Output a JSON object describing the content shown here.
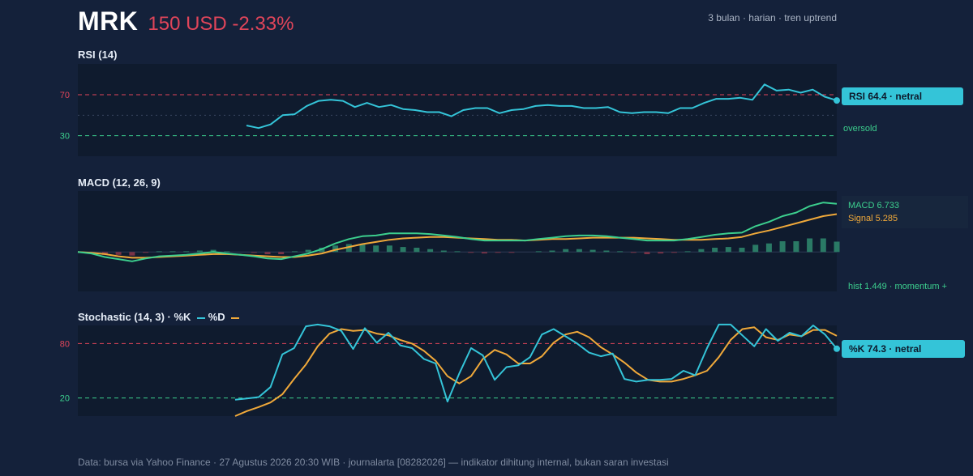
{
  "header": {
    "ticker": "MRK",
    "price_change": "150 USD -2.33%",
    "meta": "3 bulan · harian · tren uptrend"
  },
  "colors": {
    "background": "#14213a",
    "plot_bg": "#0f1b2e",
    "rsi_line": "#34c4d8",
    "macd_line": "#3ccf8e",
    "signal_line": "#f0a93a",
    "hist_pos": "#2a7a65",
    "hist_neg": "#7a3246",
    "overbought": "#e0455a",
    "oversold": "#3ccf8e"
  },
  "chart_data": [
    {
      "type": "line",
      "title": "RSI (14)",
      "ylim": [
        10,
        100
      ],
      "yticks": [
        "70",
        "30"
      ],
      "reference_lines": [
        70,
        50,
        30
      ],
      "series": [
        {
          "values": [
            40,
            37.5,
            41,
            50,
            51,
            59,
            64,
            65,
            64,
            58,
            62,
            58,
            60,
            56,
            55,
            53,
            53,
            49,
            55,
            57,
            57,
            52,
            55,
            56,
            59,
            60,
            59,
            59,
            57,
            57,
            58,
            53,
            52,
            53,
            53,
            52,
            57,
            57,
            62,
            66,
            66,
            67,
            65,
            80,
            74,
            75,
            72,
            75,
            68,
            64.4
          ]
        }
      ],
      "tag_label": "RSI 64.4 · netral",
      "zone_label": "oversold"
    },
    {
      "type": "line",
      "title": "MACD (12, 26, 9)",
      "ylim": [
        -5.5,
        8.5
      ],
      "series": [
        {
          "name": "MACD",
          "values": [
            0,
            -0.2,
            -0.7,
            -1.0,
            -1.3,
            -0.9,
            -0.6,
            -0.5,
            -0.4,
            -0.2,
            0,
            -0.2,
            -0.4,
            -0.6,
            -0.9,
            -1.0,
            -0.6,
            -0.2,
            0.4,
            1.2,
            1.8,
            2.2,
            2.3,
            2.6,
            2.6,
            2.6,
            2.5,
            2.3,
            2.1,
            1.8,
            1.6,
            1.6,
            1.6,
            1.6,
            1.8,
            2.0,
            2.2,
            2.3,
            2.3,
            2.2,
            2.0,
            1.8,
            1.6,
            1.6,
            1.6,
            1.8,
            2.1,
            2.4,
            2.6,
            2.7,
            3.6,
            4.2,
            5.0,
            5.5,
            6.4,
            6.9,
            6.733
          ]
        },
        {
          "name": "Signal",
          "values": [
            0,
            -0.1,
            -0.3,
            -0.6,
            -0.8,
            -0.8,
            -0.7,
            -0.6,
            -0.5,
            -0.4,
            -0.3,
            -0.3,
            -0.4,
            -0.5,
            -0.6,
            -0.7,
            -0.7,
            -0.5,
            -0.2,
            0.3,
            0.7,
            1.1,
            1.4,
            1.7,
            1.9,
            2.0,
            2.1,
            2.1,
            2.0,
            1.9,
            1.8,
            1.7,
            1.7,
            1.6,
            1.7,
            1.8,
            1.8,
            1.9,
            2.0,
            2.0,
            2.0,
            2.0,
            1.9,
            1.8,
            1.7,
            1.7,
            1.7,
            1.8,
            1.9,
            2.1,
            2.6,
            3.0,
            3.5,
            4.0,
            4.5,
            5.0,
            5.285
          ]
        },
        {
          "name": "hist",
          "values": [
            0,
            -0.1,
            -0.4,
            -0.4,
            -0.5,
            -0.1,
            0.1,
            0.1,
            0.1,
            0.2,
            0.3,
            0.1,
            0,
            -0.1,
            -0.3,
            -0.3,
            0.1,
            0.3,
            0.6,
            0.9,
            1.1,
            1.1,
            0.9,
            0.9,
            0.7,
            0.6,
            0.4,
            0.2,
            0.1,
            -0.1,
            -0.2,
            -0.1,
            -0.1,
            0,
            0.1,
            0.2,
            0.4,
            0.4,
            0.3,
            0.2,
            0.1,
            -0.1,
            -0.3,
            -0.2,
            -0.1,
            0.1,
            0.4,
            0.6,
            0.7,
            0.6,
            1.0,
            1.2,
            1.5,
            1.5,
            1.9,
            1.9,
            1.449
          ]
        }
      ],
      "labels": {
        "macd": "MACD 6.733",
        "signal": "Signal 5.285",
        "hist": "hist 1.449 · momentum +"
      }
    },
    {
      "type": "line",
      "title": "Stochastic (14, 3) · %K",
      "legend_d": "%D",
      "ylim": [
        0,
        100
      ],
      "yticks": [
        "80",
        "20"
      ],
      "reference_lines": [
        80,
        20
      ],
      "series": [
        {
          "name": "%K",
          "values": [
            18,
            19.5,
            21,
            32,
            68,
            75,
            99,
            101,
            99,
            94,
            74,
            97,
            81,
            92,
            78,
            75,
            63,
            58,
            16,
            47,
            75,
            67,
            40,
            54,
            56,
            65,
            90,
            96,
            88,
            80,
            70,
            66,
            69,
            41,
            38,
            40,
            40,
            41,
            50,
            45,
            75,
            101,
            101,
            89,
            77,
            96,
            83,
            92,
            88,
            100,
            90,
            74.3
          ]
        },
        {
          "name": "%D",
          "values": [
            0,
            5.5,
            10,
            15,
            24,
            41,
            57,
            77,
            91,
            96,
            94,
            95,
            91,
            89,
            84,
            80,
            72,
            61,
            44,
            36,
            44,
            63,
            73,
            68,
            58,
            58,
            66,
            81,
            90,
            93,
            87,
            76,
            68,
            59,
            48,
            40,
            38,
            38,
            41,
            45,
            50,
            65,
            84,
            96,
            98,
            87,
            84,
            90,
            88,
            95,
            95,
            88.5
          ]
        }
      ],
      "tag_label": "%K 74.3 · netral"
    }
  ],
  "footer": "Data: bursa via Yahoo Finance · 27 Agustus 2026 20:30 WIB · journalarta [08282026] — indikator dihitung internal, bukan saran investasi"
}
